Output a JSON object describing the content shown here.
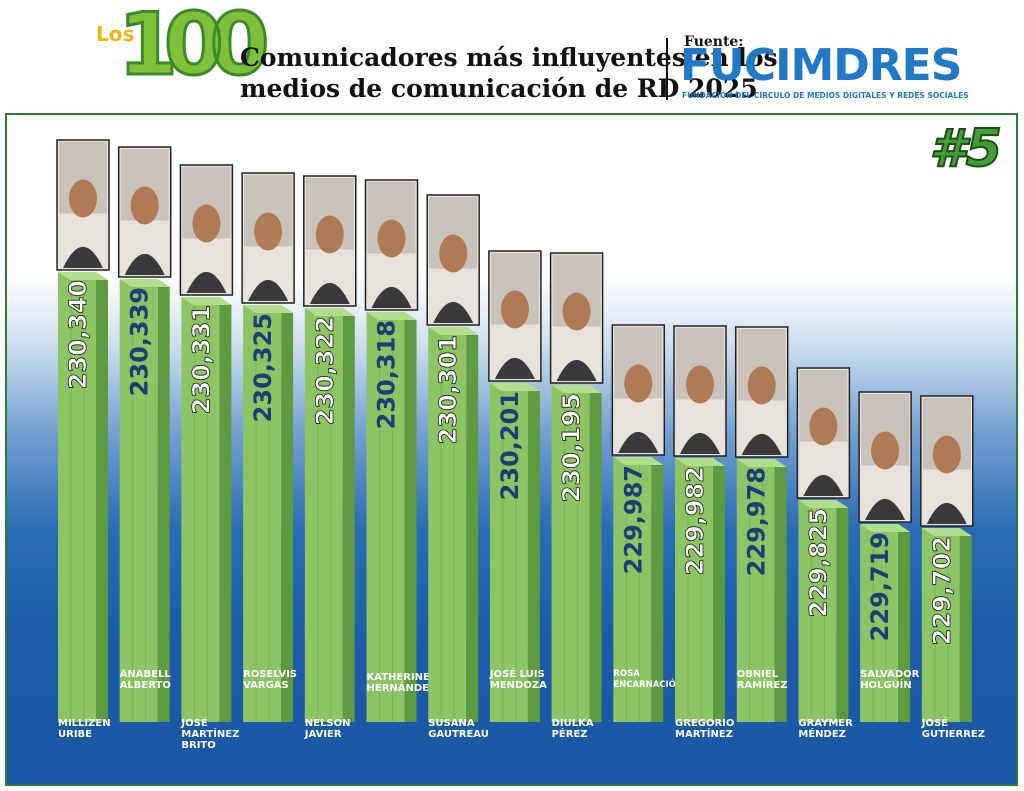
{
  "header": {
    "logo_prefix": "Los",
    "logo_number": "100",
    "title": "Comunicadores más influyentes en los\nmedios de comunicación de RD 2025",
    "source_label": "Fuente:",
    "source_name": "FUCIMDRES",
    "source_subtitle": "FUNDACIÓN DEL CÍRCULO DE MEDIOS DIGITALES Y REDES SOCIALES"
  },
  "rank_badge": "#5",
  "colors": {
    "bar_front": "#8dc565",
    "bar_side": "#5e9a3f",
    "bar_top": "#b3dc8d",
    "value_blue": "#1d3c78",
    "value_white": "#ffffff",
    "brand_blue": "#1f79c7"
  },
  "chart_data": {
    "type": "bar",
    "title": "",
    "ylim": [
      229600,
      230400
    ],
    "categories": [
      "MILLIZEN\nURIBE",
      "ANABELL\nALBERTO",
      "JOSÉ\nMARTÍNEZ\nBRITO",
      "ROSELVIS\nVARGAS",
      "NELSON\nJAVIER",
      "KATHERINE\nHERNÁNDEZ",
      "SUSANA\nGAUTREAU",
      "JOSÉ LUIS\nMENDOZA",
      "DIULKA\nPÉREZ",
      "ROSA\nENCARNACIÓN",
      "GREGORIO\nMARTÍNEZ",
      "OBNIEL\nRAMÍREZ",
      "GRAYMER\nMÉNDEZ",
      "SALVADOR\nHOLGUÍN",
      "JOSÉ\nGUTIERREZ"
    ],
    "values": [
      230340,
      230339,
      230331,
      230325,
      230322,
      230318,
      230301,
      230201,
      230195,
      229987,
      229982,
      229978,
      229825,
      229719,
      229702
    ],
    "value_labels": [
      "230,340",
      "230,339",
      "230,331",
      "230,325",
      "230,322",
      "230,318",
      "230,301",
      "230,201",
      "230,195",
      "229,987",
      "229,982",
      "229,978",
      "229,825",
      "229,719",
      "229,702"
    ]
  }
}
